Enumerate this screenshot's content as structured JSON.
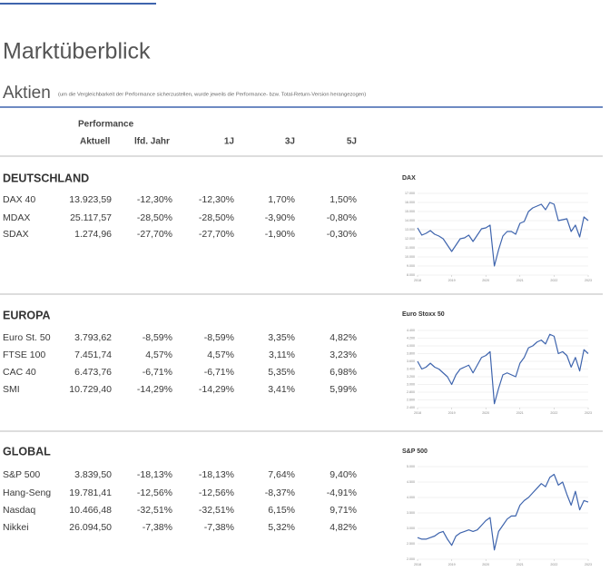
{
  "header": {
    "title": "Marktüberblick",
    "subtitle": "Aktien",
    "note": "(um die Vergleichbarkeit der Performance sicherzustellen, wurde jeweils die Performance- bzw. Total-Return-Version herangezogen)"
  },
  "table": {
    "group_header": "Performance",
    "columns": [
      "Aktuell",
      "lfd. Jahr",
      "1J",
      "3J",
      "5J"
    ]
  },
  "sections": [
    {
      "title": "DEUTSCHLAND",
      "rows": [
        {
          "name": "DAX 40",
          "values": [
            "13.923,59",
            "-12,30%",
            "-12,30%",
            "1,70%",
            "1,50%"
          ]
        },
        {
          "name": "MDAX",
          "values": [
            "25.117,57",
            "-28,50%",
            "-28,50%",
            "-3,90%",
            "-0,80%"
          ]
        },
        {
          "name": "SDAX",
          "values": [
            "1.274,96",
            "-27,70%",
            "-27,70%",
            "-1,90%",
            "-0,30%"
          ]
        }
      ]
    },
    {
      "title": "EUROPA",
      "rows": [
        {
          "name": "Euro St. 50",
          "values": [
            "3.793,62",
            "-8,59%",
            "-8,59%",
            "3,35%",
            "4,82%"
          ]
        },
        {
          "name": "FTSE 100",
          "values": [
            "7.451,74",
            "4,57%",
            "4,57%",
            "3,11%",
            "3,23%"
          ]
        },
        {
          "name": "CAC 40",
          "values": [
            "6.473,76",
            "-6,71%",
            "-6,71%",
            "5,35%",
            "6,98%"
          ]
        },
        {
          "name": "SMI",
          "values": [
            "10.729,40",
            "-14,29%",
            "-14,29%",
            "3,41%",
            "5,99%"
          ]
        }
      ]
    },
    {
      "title": "GLOBAL",
      "rows": [
        {
          "name": "S&P 500",
          "values": [
            "3.839,50",
            "-18,13%",
            "-18,13%",
            "7,64%",
            "9,40%"
          ]
        },
        {
          "name": "Hang-Seng",
          "values": [
            "19.781,41",
            "-12,56%",
            "-12,56%",
            "-8,37%",
            "-4,91%"
          ]
        },
        {
          "name": "Nasdaq",
          "values": [
            "10.466,48",
            "-32,51%",
            "-32,51%",
            "6,15%",
            "9,71%"
          ]
        },
        {
          "name": "Nikkei",
          "values": [
            "26.094,50",
            "-7,38%",
            "-7,38%",
            "5,32%",
            "4,82%"
          ]
        }
      ]
    }
  ],
  "chart_data": [
    {
      "type": "line",
      "title": "DAX",
      "color": "#3e64ad",
      "grid": true,
      "x": [
        2018,
        2018.125,
        2018.25,
        2018.375,
        2018.5,
        2018.625,
        2018.75,
        2018.875,
        2019,
        2019.125,
        2019.25,
        2019.375,
        2019.5,
        2019.625,
        2019.75,
        2019.875,
        2020,
        2020.125,
        2020.25,
        2020.375,
        2020.5,
        2020.625,
        2020.75,
        2020.875,
        2021,
        2021.125,
        2021.25,
        2021.375,
        2021.5,
        2021.625,
        2021.75,
        2021.875,
        2022,
        2022.125,
        2022.25,
        2022.375,
        2022.5,
        2022.625,
        2022.75,
        2022.875,
        2023
      ],
      "values": [
        13200,
        12400,
        12600,
        12900,
        12500,
        12300,
        12000,
        11300,
        10600,
        11300,
        12000,
        12100,
        12400,
        11700,
        12400,
        13100,
        13200,
        13500,
        9000,
        10800,
        12300,
        12800,
        12800,
        12500,
        13700,
        13900,
        15000,
        15400,
        15600,
        15800,
        15200,
        16000,
        15800,
        14000,
        14100,
        14200,
        12800,
        13500,
        12200,
        14400,
        14000
      ],
      "xlim": [
        2018,
        2023
      ],
      "xticks": [
        2018,
        2019,
        2020,
        2021,
        2022,
        2023
      ],
      "ylim": [
        8000,
        17000
      ],
      "yticks": [
        {
          "value": 8000,
          "label": "8.000"
        },
        {
          "value": 9000,
          "label": "9.000"
        },
        {
          "value": 10000,
          "label": "10.000"
        },
        {
          "value": 11000,
          "label": "11.000"
        },
        {
          "value": 12000,
          "label": "12.000"
        },
        {
          "value": 13000,
          "label": "13.000"
        },
        {
          "value": 14000,
          "label": "14.000"
        },
        {
          "value": 15000,
          "label": "15.000"
        },
        {
          "value": 16000,
          "label": "16.000"
        },
        {
          "value": 17000,
          "label": "17.000"
        }
      ]
    },
    {
      "type": "line",
      "title": "Euro Stoxx 50",
      "color": "#3e64ad",
      "grid": true,
      "x": [
        2018,
        2018.125,
        2018.25,
        2018.375,
        2018.5,
        2018.625,
        2018.75,
        2018.875,
        2019,
        2019.125,
        2019.25,
        2019.375,
        2019.5,
        2019.625,
        2019.75,
        2019.875,
        2020,
        2020.125,
        2020.25,
        2020.375,
        2020.5,
        2020.625,
        2020.75,
        2020.875,
        2021,
        2021.125,
        2021.25,
        2021.375,
        2021.5,
        2021.625,
        2021.75,
        2021.875,
        2022,
        2022.125,
        2022.25,
        2022.375,
        2022.5,
        2022.625,
        2022.75,
        2022.875,
        2023
      ],
      "values": [
        3600,
        3400,
        3450,
        3550,
        3450,
        3400,
        3300,
        3200,
        3000,
        3250,
        3400,
        3450,
        3500,
        3300,
        3500,
        3700,
        3750,
        3850,
        2500,
        2900,
        3250,
        3300,
        3250,
        3200,
        3550,
        3700,
        3950,
        4000,
        4100,
        4150,
        4050,
        4300,
        4250,
        3800,
        3850,
        3750,
        3450,
        3700,
        3350,
        3900,
        3800
      ],
      "xlim": [
        2018,
        2023
      ],
      "xticks": [
        2018,
        2019,
        2020,
        2021,
        2022,
        2023
      ],
      "ylim": [
        2400,
        4400
      ],
      "yticks": [
        {
          "value": 2400,
          "label": "2.400"
        },
        {
          "value": 2600,
          "label": "2.600"
        },
        {
          "value": 2800,
          "label": "2.800"
        },
        {
          "value": 3000,
          "label": "3.000"
        },
        {
          "value": 3200,
          "label": "3.200"
        },
        {
          "value": 3400,
          "label": "3.400"
        },
        {
          "value": 3600,
          "label": "3.600"
        },
        {
          "value": 3800,
          "label": "3.800"
        },
        {
          "value": 4000,
          "label": "4.000"
        },
        {
          "value": 4200,
          "label": "4.200"
        },
        {
          "value": 4400,
          "label": "4.400"
        }
      ]
    },
    {
      "type": "line",
      "title": "S&P 500",
      "color": "#3e64ad",
      "grid": true,
      "x": [
        2018,
        2018.125,
        2018.25,
        2018.375,
        2018.5,
        2018.625,
        2018.75,
        2018.875,
        2019,
        2019.125,
        2019.25,
        2019.375,
        2019.5,
        2019.625,
        2019.75,
        2019.875,
        2020,
        2020.125,
        2020.25,
        2020.375,
        2020.5,
        2020.625,
        2020.75,
        2020.875,
        2021,
        2021.125,
        2021.25,
        2021.375,
        2021.5,
        2021.625,
        2021.75,
        2021.875,
        2022,
        2022.125,
        2022.25,
        2022.375,
        2022.5,
        2022.625,
        2022.75,
        2022.875,
        2023
      ],
      "values": [
        2700,
        2650,
        2650,
        2700,
        2750,
        2850,
        2900,
        2650,
        2450,
        2750,
        2850,
        2900,
        2950,
        2900,
        2950,
        3100,
        3250,
        3350,
        2300,
        2900,
        3100,
        3300,
        3400,
        3400,
        3750,
        3900,
        4000,
        4150,
        4300,
        4450,
        4350,
        4650,
        4750,
        4400,
        4500,
        4100,
        3750,
        4200,
        3600,
        3900,
        3850
      ],
      "xlim": [
        2018,
        2023
      ],
      "xticks": [
        2018,
        2019,
        2020,
        2021,
        2022,
        2023
      ],
      "ylim": [
        2000,
        5000
      ],
      "yticks": [
        {
          "value": 2000,
          "label": "2.000"
        },
        {
          "value": 2500,
          "label": "2.500"
        },
        {
          "value": 3000,
          "label": "3.000"
        },
        {
          "value": 3500,
          "label": "3.500"
        },
        {
          "value": 4000,
          "label": "4.000"
        },
        {
          "value": 4500,
          "label": "4.500"
        },
        {
          "value": 5000,
          "label": "5.000"
        }
      ]
    }
  ]
}
